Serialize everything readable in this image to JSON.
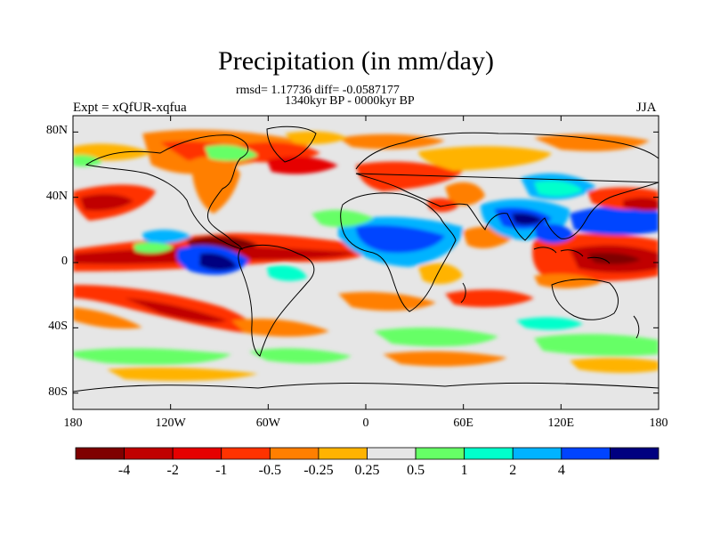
{
  "title": "Precipitation (in mm/day)",
  "stats": "rmsd= 1.17736 diff= -0.0587177",
  "period": "1340kyr BP - 0000kyr BP",
  "experiment": "Expt = xQfUR-xqfua",
  "season": "JJA",
  "map": {
    "background_color": "#e6e6e6",
    "y_ticks": [
      {
        "label": "80N",
        "lat": 80
      },
      {
        "label": "40N",
        "lat": 40
      },
      {
        "label": "0",
        "lat": 0
      },
      {
        "label": "40S",
        "lat": -40
      },
      {
        "label": "80S",
        "lat": -80
      }
    ],
    "x_ticks": [
      {
        "label": "180",
        "lon": -180
      },
      {
        "label": "120W",
        "lon": -120
      },
      {
        "label": "60W",
        "lon": -60
      },
      {
        "label": "0",
        "lon": 0
      },
      {
        "label": "60E",
        "lon": 60
      },
      {
        "label": "120E",
        "lon": 120
      },
      {
        "label": "180",
        "lon": 180
      }
    ]
  },
  "colorbar": {
    "colors": [
      "#7f0000",
      "#c00000",
      "#e60000",
      "#ff3300",
      "#ff7f00",
      "#ffb300",
      "#e6e6e6",
      "#66ff66",
      "#00ffcc",
      "#00b3ff",
      "#0044ff",
      "#000080"
    ],
    "labels": [
      "-4",
      "-2",
      "-1",
      "-0.5",
      "-0.25",
      "0.25",
      "0.5",
      "1",
      "2",
      "4"
    ]
  }
}
